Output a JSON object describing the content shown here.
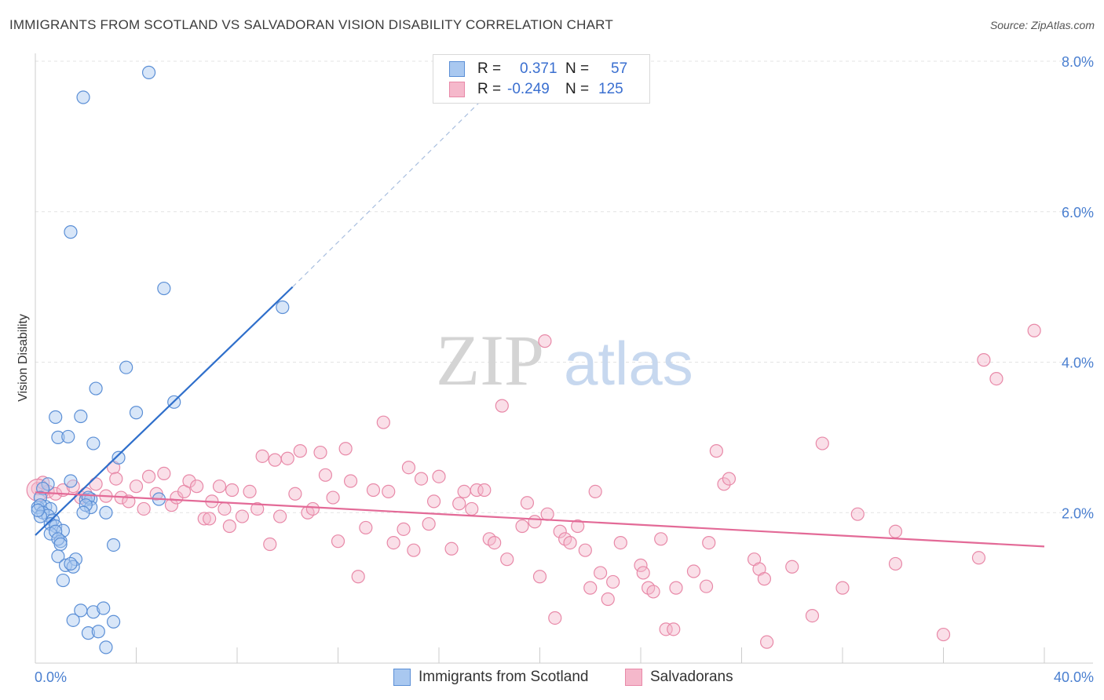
{
  "title": "IMMIGRANTS FROM SCOTLAND VS SALVADORAN VISION DISABILITY CORRELATION CHART",
  "source": "Source: ZipAtlas.com",
  "watermark": {
    "zip": "ZIP",
    "atlas": "atlas"
  },
  "legend_top": {
    "rows": [
      {
        "r_label": "R =",
        "r_value": "0.371",
        "n_label": "N =",
        "n_value": "57"
      },
      {
        "r_label": "R =",
        "r_value": "-0.249",
        "n_label": "N =",
        "n_value": "125"
      }
    ]
  },
  "legend_bottom": {
    "items": [
      {
        "label": "Immigrants from Scotland"
      },
      {
        "label": "Salvadorans"
      }
    ]
  },
  "colors": {
    "blue_fill": "#a9c8f0",
    "blue_stroke": "#5b8fd6",
    "blue_line": "#2f6fcb",
    "pink_fill": "#f5b8cb",
    "pink_stroke": "#e889a8",
    "pink_line": "#e36a97",
    "grid": "#e3e3e3",
    "axis": "#cccccc",
    "tick_text": "#4a7fd0"
  },
  "chart_data": {
    "type": "scatter",
    "ylabel": "Vision Disability",
    "xlim": [
      0,
      40
    ],
    "ylim": [
      0,
      8.4
    ],
    "x_tick_labels": [
      {
        "value": 0,
        "label": "0.0%"
      },
      {
        "value": 40,
        "label": "40.0%"
      }
    ],
    "y_ticks": [
      {
        "value": 2,
        "label": "2.0%"
      },
      {
        "value": 4,
        "label": "4.0%"
      },
      {
        "value": 6,
        "label": "6.0%"
      },
      {
        "value": 8,
        "label": "8.0%"
      }
    ],
    "series": [
      {
        "name": "Immigrants from Scotland",
        "r": 0.371,
        "n": 57,
        "trend": {
          "x0": 0.0,
          "y0": 1.7,
          "x1": 10.2,
          "y1": 5.0,
          "dash_to_x": 18.5,
          "dash_to_y": 7.75
        },
        "points": [
          [
            4.5,
            7.85
          ],
          [
            1.9,
            7.52
          ],
          [
            1.4,
            5.73
          ],
          [
            5.1,
            4.98
          ],
          [
            9.8,
            4.73
          ],
          [
            3.6,
            3.93
          ],
          [
            2.4,
            3.65
          ],
          [
            5.5,
            3.47
          ],
          [
            4.0,
            3.33
          ],
          [
            0.8,
            3.27
          ],
          [
            1.8,
            3.28
          ],
          [
            0.9,
            3.0
          ],
          [
            1.3,
            3.01
          ],
          [
            2.3,
            2.92
          ],
          [
            3.3,
            2.73
          ],
          [
            0.5,
            2.38
          ],
          [
            1.4,
            2.42
          ],
          [
            0.3,
            2.32
          ],
          [
            0.2,
            2.2
          ],
          [
            0.4,
            2.08
          ],
          [
            0.1,
            2.07
          ],
          [
            0.2,
            2.1
          ],
          [
            0.6,
            2.05
          ],
          [
            0.3,
            2.0
          ],
          [
            0.5,
            1.96
          ],
          [
            0.7,
            1.9
          ],
          [
            0.6,
            1.85
          ],
          [
            0.8,
            1.82
          ],
          [
            1.1,
            1.76
          ],
          [
            0.6,
            1.72
          ],
          [
            0.8,
            1.75
          ],
          [
            0.2,
            1.95
          ],
          [
            0.1,
            2.03
          ],
          [
            2.0,
            2.17
          ],
          [
            2.2,
            2.18
          ],
          [
            2.1,
            2.2
          ],
          [
            2.2,
            2.07
          ],
          [
            2.0,
            2.1
          ],
          [
            1.9,
            2.0
          ],
          [
            2.8,
            2.0
          ],
          [
            4.9,
            2.18
          ],
          [
            1.0,
            1.62
          ],
          [
            0.9,
            1.65
          ],
          [
            1.0,
            1.58
          ],
          [
            3.1,
            1.57
          ],
          [
            0.9,
            1.42
          ],
          [
            1.2,
            1.3
          ],
          [
            1.6,
            1.38
          ],
          [
            1.5,
            1.28
          ],
          [
            1.4,
            1.32
          ],
          [
            1.1,
            1.1
          ],
          [
            1.8,
            0.7
          ],
          [
            2.3,
            0.68
          ],
          [
            2.7,
            0.73
          ],
          [
            1.5,
            0.57
          ],
          [
            3.1,
            0.55
          ],
          [
            2.1,
            0.4
          ],
          [
            2.5,
            0.42
          ],
          [
            2.8,
            0.21
          ]
        ]
      },
      {
        "name": "Salvadorans",
        "r": -0.249,
        "n": 125,
        "trend": {
          "x0": 0.0,
          "y0": 2.27,
          "x1": 40.0,
          "y1": 1.55
        },
        "points": [
          [
            0.1,
            2.32
          ],
          [
            0.3,
            2.4
          ],
          [
            0.5,
            2.28
          ],
          [
            0.8,
            2.25
          ],
          [
            1.1,
            2.3
          ],
          [
            1.5,
            2.35
          ],
          [
            1.8,
            2.2
          ],
          [
            2.0,
            2.25
          ],
          [
            2.4,
            2.38
          ],
          [
            2.8,
            2.22
          ],
          [
            3.1,
            2.6
          ],
          [
            3.2,
            2.45
          ],
          [
            3.4,
            2.2
          ],
          [
            3.7,
            2.15
          ],
          [
            4.0,
            2.35
          ],
          [
            4.3,
            2.05
          ],
          [
            4.5,
            2.48
          ],
          [
            4.8,
            2.25
          ],
          [
            5.1,
            2.52
          ],
          [
            5.4,
            2.1
          ],
          [
            5.6,
            2.2
          ],
          [
            5.9,
            2.28
          ],
          [
            6.1,
            2.42
          ],
          [
            6.4,
            2.35
          ],
          [
            6.7,
            1.92
          ],
          [
            6.9,
            1.92
          ],
          [
            7.0,
            2.15
          ],
          [
            7.3,
            2.35
          ],
          [
            7.5,
            2.05
          ],
          [
            7.8,
            2.3
          ],
          [
            7.7,
            1.82
          ],
          [
            8.2,
            1.95
          ],
          [
            8.5,
            2.28
          ],
          [
            8.8,
            2.05
          ],
          [
            9.0,
            2.75
          ],
          [
            9.3,
            1.58
          ],
          [
            9.5,
            2.7
          ],
          [
            9.7,
            1.95
          ],
          [
            10.0,
            2.72
          ],
          [
            10.3,
            2.25
          ],
          [
            10.5,
            2.82
          ],
          [
            10.8,
            2.0
          ],
          [
            11.0,
            2.05
          ],
          [
            11.3,
            2.8
          ],
          [
            11.5,
            2.5
          ],
          [
            11.8,
            2.2
          ],
          [
            12.0,
            1.62
          ],
          [
            12.3,
            2.85
          ],
          [
            12.5,
            2.42
          ],
          [
            12.8,
            1.15
          ],
          [
            13.1,
            1.8
          ],
          [
            13.4,
            2.3
          ],
          [
            13.8,
            3.2
          ],
          [
            14.0,
            2.28
          ],
          [
            14.2,
            1.6
          ],
          [
            14.6,
            1.78
          ],
          [
            14.8,
            2.6
          ],
          [
            15.0,
            1.5
          ],
          [
            15.3,
            2.45
          ],
          [
            15.6,
            1.85
          ],
          [
            15.8,
            2.15
          ],
          [
            16.0,
            2.48
          ],
          [
            16.5,
            1.52
          ],
          [
            16.8,
            2.12
          ],
          [
            17.0,
            2.28
          ],
          [
            17.3,
            2.05
          ],
          [
            17.5,
            2.3
          ],
          [
            17.8,
            2.3
          ],
          [
            18.0,
            1.65
          ],
          [
            18.2,
            1.6
          ],
          [
            18.7,
            1.38
          ],
          [
            18.5,
            3.42
          ],
          [
            19.3,
            1.82
          ],
          [
            19.5,
            2.13
          ],
          [
            19.8,
            1.88
          ],
          [
            20.0,
            1.15
          ],
          [
            20.2,
            4.28
          ],
          [
            20.3,
            1.98
          ],
          [
            20.6,
            0.6
          ],
          [
            20.8,
            1.75
          ],
          [
            21.0,
            1.65
          ],
          [
            21.2,
            1.6
          ],
          [
            21.5,
            1.82
          ],
          [
            21.8,
            1.5
          ],
          [
            22.0,
            1.0
          ],
          [
            22.2,
            2.28
          ],
          [
            22.4,
            1.2
          ],
          [
            22.7,
            0.85
          ],
          [
            22.9,
            1.08
          ],
          [
            23.2,
            1.6
          ],
          [
            24.0,
            1.3
          ],
          [
            24.1,
            1.2
          ],
          [
            24.3,
            1.0
          ],
          [
            24.5,
            0.95
          ],
          [
            24.8,
            1.65
          ],
          [
            25.0,
            0.45
          ],
          [
            25.3,
            0.45
          ],
          [
            25.4,
            1.0
          ],
          [
            26.1,
            1.22
          ],
          [
            26.6,
            1.02
          ],
          [
            26.7,
            1.6
          ],
          [
            27.0,
            2.82
          ],
          [
            27.3,
            2.38
          ],
          [
            27.5,
            2.45
          ],
          [
            28.5,
            1.38
          ],
          [
            28.7,
            1.25
          ],
          [
            28.9,
            1.12
          ],
          [
            29.0,
            0.28
          ],
          [
            30.0,
            1.28
          ],
          [
            30.8,
            0.63
          ],
          [
            31.2,
            2.92
          ],
          [
            32.0,
            1.0
          ],
          [
            32.6,
            1.98
          ],
          [
            34.1,
            1.75
          ],
          [
            34.1,
            1.32
          ],
          [
            36.0,
            0.38
          ],
          [
            37.4,
            1.4
          ],
          [
            37.6,
            4.03
          ],
          [
            38.1,
            3.78
          ],
          [
            39.6,
            4.42
          ]
        ]
      }
    ]
  }
}
